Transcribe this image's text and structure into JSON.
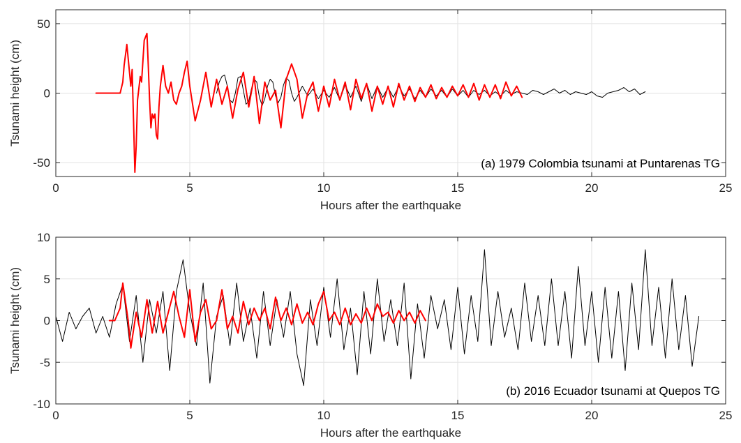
{
  "chart_data": [
    {
      "type": "line",
      "panel": "a",
      "annotation": "(a) 1979 Colombia tsunami at Puntarenas TG",
      "xlabel": "Hours after the earthquake",
      "ylabel": "Tsunami height (cm)",
      "xlim": [
        0,
        25
      ],
      "ylim": [
        -60,
        60
      ],
      "x_ticks": [
        0,
        5,
        10,
        15,
        20,
        25
      ],
      "y_ticks": [
        -50,
        0,
        50
      ],
      "grid": true,
      "series": [
        {
          "color": "#000000",
          "width": 1.0,
          "x": [
            6.0,
            6.1,
            6.2,
            6.3,
            6.4,
            6.5,
            6.6,
            6.7,
            6.8,
            6.9,
            7.0,
            7.1,
            7.2,
            7.3,
            7.4,
            7.5,
            7.6,
            7.7,
            7.8,
            7.9,
            8.0,
            8.1,
            8.2,
            8.3,
            8.4,
            8.5,
            8.6,
            8.7,
            8.8,
            8.9,
            9.0,
            9.2,
            9.4,
            9.6,
            9.8,
            10.0,
            10.2,
            10.4,
            10.6,
            10.8,
            11.0,
            11.2,
            11.4,
            11.6,
            11.8,
            12.0,
            12.2,
            12.4,
            12.6,
            12.8,
            13.0,
            13.2,
            13.4,
            13.6,
            13.8,
            14.0,
            14.2,
            14.4,
            14.6,
            14.8,
            15.0,
            15.2,
            15.4,
            15.6,
            15.8,
            16.0,
            16.2,
            16.4,
            16.6,
            16.8,
            17.0,
            17.2,
            17.4,
            17.6,
            17.8,
            18.0,
            18.2,
            18.4,
            18.6,
            18.8,
            19.0,
            19.2,
            19.4,
            19.6,
            19.8,
            20.0,
            20.2,
            20.4,
            20.6,
            20.8,
            21.0,
            21.2,
            21.4,
            21.6,
            21.8,
            22.0
          ],
          "y": [
            0,
            8,
            12,
            13,
            5,
            -5,
            -7,
            0,
            11,
            12,
            2,
            -8,
            -6,
            3,
            10,
            8,
            -3,
            -9,
            -4,
            5,
            10,
            8,
            -2,
            -7,
            -3,
            6,
            11,
            9,
            0,
            -6,
            -3,
            5,
            -2,
            3,
            -4,
            2,
            -3,
            4,
            -5,
            6,
            -3,
            5,
            -6,
            7,
            -4,
            5,
            -3,
            4,
            -3,
            5,
            -2,
            3,
            -4,
            2,
            -3,
            3,
            -2,
            2,
            -3,
            3,
            -2,
            2,
            -3,
            2,
            -1,
            2,
            -2,
            1,
            -2,
            2,
            -1,
            1,
            0,
            -1,
            2,
            1,
            -1,
            1,
            3,
            0,
            2,
            -1,
            1,
            0,
            -1,
            1,
            -2,
            -3,
            0,
            1,
            2,
            4,
            1,
            3,
            -1,
            1
          ]
        },
        {
          "color": "#ff0000",
          "width": 2.0,
          "x": [
            1.5,
            2.4,
            2.5,
            2.55,
            2.65,
            2.75,
            2.8,
            2.85,
            2.9,
            2.95,
            3.0,
            3.05,
            3.15,
            3.2,
            3.3,
            3.4,
            3.45,
            3.5,
            3.55,
            3.6,
            3.65,
            3.7,
            3.75,
            3.8,
            3.85,
            3.9,
            4.0,
            4.1,
            4.2,
            4.3,
            4.4,
            4.5,
            4.6,
            4.7,
            4.8,
            4.9,
            5.0,
            5.2,
            5.4,
            5.6,
            5.8,
            6.0,
            6.2,
            6.4,
            6.6,
            6.8,
            7.0,
            7.2,
            7.4,
            7.6,
            7.8,
            8.0,
            8.2,
            8.4,
            8.6,
            8.8,
            9.0,
            9.2,
            9.4,
            9.6,
            9.8,
            10.0,
            10.2,
            10.4,
            10.6,
            10.8,
            11.0,
            11.2,
            11.4,
            11.6,
            11.8,
            12.0,
            12.2,
            12.4,
            12.6,
            12.8,
            13.0,
            13.2,
            13.4,
            13.6,
            13.8,
            14.0,
            14.2,
            14.4,
            14.6,
            14.8,
            15.0,
            15.2,
            15.4,
            15.6,
            15.8,
            16.0,
            16.2,
            16.4,
            16.6,
            16.8,
            17.0,
            17.2,
            17.4
          ],
          "y": [
            0,
            0,
            8,
            20,
            35,
            15,
            5,
            17,
            -20,
            -57,
            -38,
            -5,
            12,
            8,
            38,
            43,
            20,
            -5,
            -25,
            -15,
            -18,
            -15,
            -30,
            -33,
            -10,
            5,
            20,
            5,
            0,
            8,
            -5,
            -8,
            0,
            5,
            15,
            23,
            5,
            -20,
            -5,
            15,
            -10,
            10,
            -8,
            5,
            -18,
            3,
            15,
            -10,
            12,
            -22,
            8,
            -5,
            2,
            -25,
            10,
            21,
            10,
            -18,
            0,
            8,
            -13,
            5,
            -10,
            10,
            -5,
            8,
            -12,
            10,
            -4,
            7,
            -13,
            5,
            -8,
            5,
            -10,
            7,
            -5,
            5,
            -6,
            4,
            -3,
            6,
            -4,
            4,
            -3,
            5,
            -2,
            6,
            -3,
            7,
            -5,
            6,
            -3,
            6,
            -4,
            8,
            -2,
            5,
            -3
          ]
        }
      ]
    },
    {
      "type": "line",
      "panel": "b",
      "annotation": "(b) 2016 Ecuador tsunami at Quepos TG",
      "xlabel": "Hours after the earthquake",
      "ylabel": "Tsunami height (cm)",
      "xlim": [
        0,
        25
      ],
      "ylim": [
        -10,
        10
      ],
      "x_ticks": [
        0,
        5,
        10,
        15,
        20,
        25
      ],
      "y_ticks": [
        -10,
        -5,
        0,
        5,
        10
      ],
      "grid": true,
      "series": [
        {
          "color": "#000000",
          "width": 1.0,
          "x": [
            0.0,
            0.25,
            0.5,
            0.75,
            1.0,
            1.25,
            1.5,
            1.75,
            2.0,
            2.25,
            2.5,
            2.75,
            3.0,
            3.25,
            3.5,
            3.75,
            4.0,
            4.25,
            4.5,
            4.75,
            5.0,
            5.25,
            5.5,
            5.75,
            6.0,
            6.25,
            6.5,
            6.75,
            7.0,
            7.25,
            7.5,
            7.75,
            8.0,
            8.25,
            8.5,
            8.75,
            9.0,
            9.25,
            9.5,
            9.75,
            10.0,
            10.25,
            10.5,
            10.75,
            11.0,
            11.25,
            11.5,
            11.75,
            12.0,
            12.25,
            12.5,
            12.75,
            13.0,
            13.25,
            13.5,
            13.75,
            14.0,
            14.25,
            14.5,
            14.75,
            15.0,
            15.25,
            15.5,
            15.75,
            16.0,
            16.25,
            16.5,
            16.75,
            17.0,
            17.25,
            17.5,
            17.75,
            18.0,
            18.25,
            18.5,
            18.75,
            19.0,
            19.25,
            19.5,
            19.75,
            20.0,
            20.25,
            20.5,
            20.75,
            21.0,
            21.25,
            21.5,
            21.75,
            22.0,
            22.25,
            22.5,
            22.75,
            23.0,
            23.25,
            23.5,
            23.75,
            24.0
          ],
          "y": [
            0.5,
            -2.5,
            1.0,
            -1.0,
            0.5,
            1.5,
            -1.5,
            0.5,
            -2.0,
            2.0,
            4.3,
            -2.5,
            3.0,
            -5.0,
            2.5,
            -1.5,
            3.5,
            -6.0,
            3.5,
            7.3,
            1.0,
            -3.0,
            4.5,
            -7.5,
            0.5,
            3.0,
            -3.0,
            4.5,
            -2.5,
            1.5,
            -4.5,
            3.5,
            -3.0,
            2.5,
            -2.0,
            3.5,
            -4.0,
            -7.8,
            2.5,
            -3.0,
            4.0,
            -2.0,
            5.0,
            -3.5,
            1.5,
            -6.5,
            3.5,
            -4.0,
            5.0,
            -2.5,
            2.5,
            -3.0,
            4.5,
            -7.0,
            2.0,
            -4.5,
            3.0,
            -1.0,
            2.5,
            -3.5,
            4.0,
            -4.0,
            3.0,
            -2.5,
            8.5,
            -3.0,
            3.5,
            -2.0,
            1.5,
            -3.5,
            4.5,
            -2.5,
            3.0,
            -3.0,
            5.0,
            -3.0,
            3.5,
            -4.5,
            6.5,
            -3.0,
            3.5,
            -5.0,
            4.0,
            -4.5,
            3.5,
            -6.0,
            4.5,
            -3.5,
            8.5,
            -3.0,
            4.0,
            -4.5,
            5.0,
            -3.5,
            3.0,
            -5.5,
            0.5
          ]
        },
        {
          "color": "#ff0000",
          "width": 2.0,
          "x": [
            2.0,
            2.2,
            2.4,
            2.5,
            2.7,
            2.8,
            3.0,
            3.2,
            3.4,
            3.6,
            3.8,
            4.0,
            4.2,
            4.4,
            4.6,
            4.8,
            5.0,
            5.2,
            5.4,
            5.6,
            5.8,
            6.0,
            6.2,
            6.4,
            6.6,
            6.8,
            7.0,
            7.2,
            7.4,
            7.6,
            7.8,
            8.0,
            8.2,
            8.4,
            8.6,
            8.8,
            9.0,
            9.2,
            9.4,
            9.6,
            9.8,
            10.0,
            10.2,
            10.4,
            10.6,
            10.8,
            11.0,
            11.2,
            11.4,
            11.6,
            11.8,
            12.0,
            12.2,
            12.4,
            12.6,
            12.8,
            13.0,
            13.2,
            13.4,
            13.6,
            13.8
          ],
          "y": [
            0,
            0,
            1.5,
            4.5,
            0,
            -3.3,
            1.0,
            -2.0,
            2.5,
            -1.5,
            2.3,
            -1.5,
            1.0,
            3.5,
            0.5,
            -2.0,
            3.7,
            -2.5,
            1.0,
            2.5,
            -1.0,
            0,
            3.7,
            -1.0,
            0.5,
            -1.5,
            2.3,
            -0.5,
            1.5,
            0,
            1.5,
            -1.0,
            2.8,
            0,
            1.5,
            -0.5,
            2.0,
            -0.3,
            1.0,
            -0.5,
            2.0,
            3.5,
            0,
            1.0,
            -0.5,
            1.5,
            -0.5,
            0.8,
            -0.3,
            1.5,
            0,
            2.0,
            0.5,
            1.0,
            -0.3,
            1.2,
            0,
            1.0,
            -0.3,
            1.2,
            0
          ]
        }
      ]
    }
  ]
}
